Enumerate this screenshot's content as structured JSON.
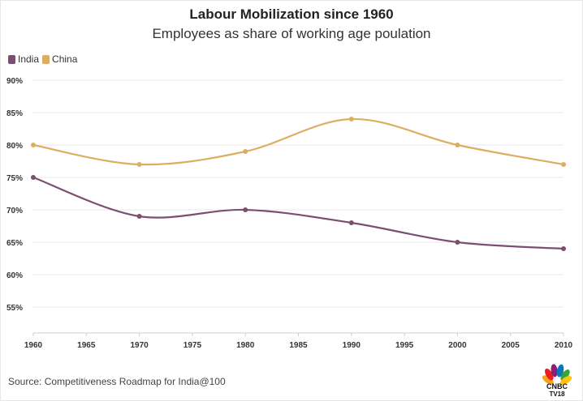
{
  "header": {
    "title": "Labour Mobilization since 1960",
    "subtitle": "Employees as share of working age poulation"
  },
  "footer": {
    "source": "Source: Competitiveness Roadmap for India@100",
    "logo_line1": "CNBC",
    "logo_line2": "TV18"
  },
  "colors": {
    "india": "#7b4f6f",
    "china": "#dcae62",
    "grid": "#e8e8e8",
    "axis": "#cccccc"
  },
  "chart_data": {
    "type": "line",
    "title": "Labour Mobilization since 1960",
    "subtitle": "Employees as share of working age poulation",
    "xlabel": "",
    "ylabel": "",
    "x": [
      1960,
      1970,
      1980,
      1990,
      2000,
      2010
    ],
    "x_ticks": [
      "1960",
      "1965",
      "1970",
      "1975",
      "1980",
      "1985",
      "1990",
      "1995",
      "2000",
      "2005",
      "2010"
    ],
    "y_ticks": [
      "90%",
      "85%",
      "80%",
      "75%",
      "70%",
      "65%",
      "60%",
      "55%"
    ],
    "xlim": [
      1960,
      2010
    ],
    "ylim": [
      51,
      90
    ],
    "legend_position": "top-left",
    "grid": true,
    "series": [
      {
        "name": "India",
        "color": "#7b4f6f",
        "values": [
          75,
          69,
          70,
          68,
          65,
          64
        ]
      },
      {
        "name": "China",
        "color": "#dcae62",
        "values": [
          80,
          77,
          79,
          84,
          80,
          77
        ]
      }
    ]
  }
}
